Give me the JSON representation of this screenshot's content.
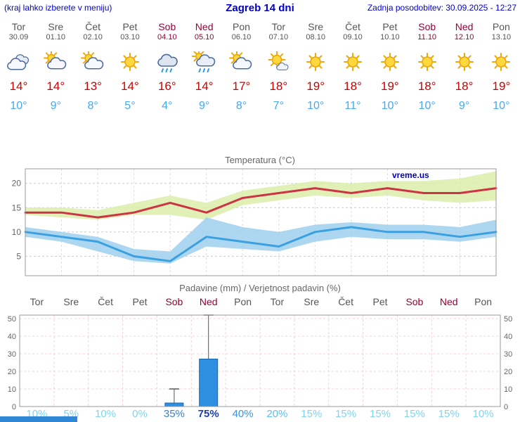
{
  "header": {
    "left_note": "(kraj lahko izberete v meniju)",
    "title": "Zagreb 14 dni",
    "last_update": "Zadnja posodobitev: 30.09.2025 - 12:27"
  },
  "watermark": "vreme.us",
  "colors": {
    "link_blue": "#0000cc",
    "weekday": "#555555",
    "weekend": "#990033",
    "tmax_red": "#cc0000",
    "tmin_blue": "#44aaf0"
  },
  "days": [
    {
      "name": "Tor",
      "date": "30.09",
      "weekend": false,
      "icon": "cloud",
      "tmax": "14°",
      "tmin": "10°"
    },
    {
      "name": "Sre",
      "date": "01.10",
      "weekend": false,
      "icon": "partly",
      "tmax": "14°",
      "tmin": "9°"
    },
    {
      "name": "Čet",
      "date": "02.10",
      "weekend": false,
      "icon": "partly",
      "tmax": "13°",
      "tmin": "8°"
    },
    {
      "name": "Pet",
      "date": "03.10",
      "weekend": false,
      "icon": "sun",
      "tmax": "14°",
      "tmin": "5°"
    },
    {
      "name": "Sob",
      "date": "04.10",
      "weekend": true,
      "icon": "rain",
      "tmax": "16°",
      "tmin": "4°"
    },
    {
      "name": "Ned",
      "date": "05.10",
      "weekend": true,
      "icon": "shower",
      "tmax": "14°",
      "tmin": "9°"
    },
    {
      "name": "Pon",
      "date": "06.10",
      "weekend": false,
      "icon": "partly",
      "tmax": "17°",
      "tmin": "8°"
    },
    {
      "name": "Tor",
      "date": "07.10",
      "weekend": false,
      "icon": "mostlysun",
      "tmax": "18°",
      "tmin": "7°"
    },
    {
      "name": "Sre",
      "date": "08.10",
      "weekend": false,
      "icon": "sun",
      "tmax": "19°",
      "tmin": "10°"
    },
    {
      "name": "Čet",
      "date": "09.10",
      "weekend": false,
      "icon": "sun",
      "tmax": "18°",
      "tmin": "11°"
    },
    {
      "name": "Pet",
      "date": "10.10",
      "weekend": false,
      "icon": "sun",
      "tmax": "19°",
      "tmin": "10°"
    },
    {
      "name": "Sob",
      "date": "11.10",
      "weekend": true,
      "icon": "sun",
      "tmax": "18°",
      "tmin": "10°"
    },
    {
      "name": "Ned",
      "date": "12.10",
      "weekend": true,
      "icon": "sun",
      "tmax": "18°",
      "tmin": "9°"
    },
    {
      "name": "Pon",
      "date": "13.10",
      "weekend": false,
      "icon": "sun",
      "tmax": "19°",
      "tmin": "10°"
    }
  ],
  "chart_data": [
    {
      "type": "line",
      "title": "Temperatura (°C)",
      "x_labels": [
        "Tor",
        "Sre",
        "Čet",
        "Pet",
        "Sob",
        "Ned",
        "Pon",
        "Tor",
        "Sre",
        "Čet",
        "Pet",
        "Sob",
        "Ned",
        "Pon"
      ],
      "ylim": [
        1,
        23
      ],
      "yticks": [
        5,
        10,
        15,
        20
      ],
      "grid": true,
      "band_colors": {
        "max": "#dcedaa",
        "min": "#9fd0ee"
      },
      "series": [
        {
          "name": "max",
          "color": "#cc3344",
          "values": [
            14,
            14,
            13,
            14,
            16,
            14,
            17,
            18,
            19,
            18,
            19,
            18,
            18,
            19
          ]
        },
        {
          "name": "min",
          "color": "#3aa0e0",
          "values": [
            10,
            9,
            8,
            5,
            4,
            9,
            8,
            7,
            10,
            11,
            10,
            10,
            9,
            10
          ]
        },
        {
          "name": "max_range_upper",
          "values": [
            15,
            15,
            14.5,
            16,
            17.5,
            16,
            18.5,
            19.5,
            20.5,
            20,
            20.5,
            20.5,
            21,
            22.5
          ]
        },
        {
          "name": "max_range_lower",
          "values": [
            13.5,
            13,
            12.5,
            13.5,
            13.5,
            12.5,
            15.5,
            16.5,
            17.5,
            17,
            17.5,
            16.5,
            16,
            16.5
          ]
        },
        {
          "name": "min_range_upper",
          "values": [
            11,
            10,
            9,
            6.5,
            6,
            13,
            11,
            10,
            11.5,
            12,
            11.5,
            11.5,
            11,
            12.5
          ]
        },
        {
          "name": "min_range_lower",
          "values": [
            9,
            8,
            6,
            4,
            3.5,
            7,
            6.5,
            6,
            8,
            9,
            8.5,
            8.5,
            8,
            9
          ]
        }
      ]
    },
    {
      "type": "bar",
      "title": "Padavine (mm) / Verjetnost padavin (%)",
      "categories": [
        "Tor",
        "Sre",
        "Čet",
        "Pet",
        "Sob",
        "Ned",
        "Pon",
        "Tor",
        "Sre",
        "Čet",
        "Pet",
        "Sob",
        "Ned",
        "Pon"
      ],
      "values": [
        0,
        0,
        0,
        0,
        2,
        27,
        0,
        0,
        0,
        0,
        0,
        0,
        0,
        0
      ],
      "whisker_max": [
        0,
        0,
        0,
        0,
        10,
        52,
        0,
        0,
        0,
        0,
        0,
        0,
        0,
        0
      ],
      "ylim": [
        0,
        52
      ],
      "yticks": [
        0,
        10,
        20,
        30,
        40,
        50
      ],
      "bar_color": "#2e8fe0",
      "probabilities": [
        {
          "label": "10%",
          "color": "#7fd4f0",
          "bold": false
        },
        {
          "label": "5%",
          "color": "#7fd4f0",
          "bold": false
        },
        {
          "label": "10%",
          "color": "#7fd4f0",
          "bold": false
        },
        {
          "label": "0%",
          "color": "#7fd4f0",
          "bold": false
        },
        {
          "label": "35%",
          "color": "#3a7ecc",
          "bold": false
        },
        {
          "label": "75%",
          "color": "#1b3fae",
          "bold": true
        },
        {
          "label": "40%",
          "color": "#3a93dc",
          "bold": false
        },
        {
          "label": "20%",
          "color": "#5fc0ea",
          "bold": false
        },
        {
          "label": "15%",
          "color": "#7fd4f0",
          "bold": false
        },
        {
          "label": "15%",
          "color": "#7fd4f0",
          "bold": false
        },
        {
          "label": "15%",
          "color": "#7fd4f0",
          "bold": false
        },
        {
          "label": "15%",
          "color": "#7fd4f0",
          "bold": false
        },
        {
          "label": "15%",
          "color": "#7fd4f0",
          "bold": false
        },
        {
          "label": "10%",
          "color": "#7fd4f0",
          "bold": false
        }
      ]
    }
  ]
}
